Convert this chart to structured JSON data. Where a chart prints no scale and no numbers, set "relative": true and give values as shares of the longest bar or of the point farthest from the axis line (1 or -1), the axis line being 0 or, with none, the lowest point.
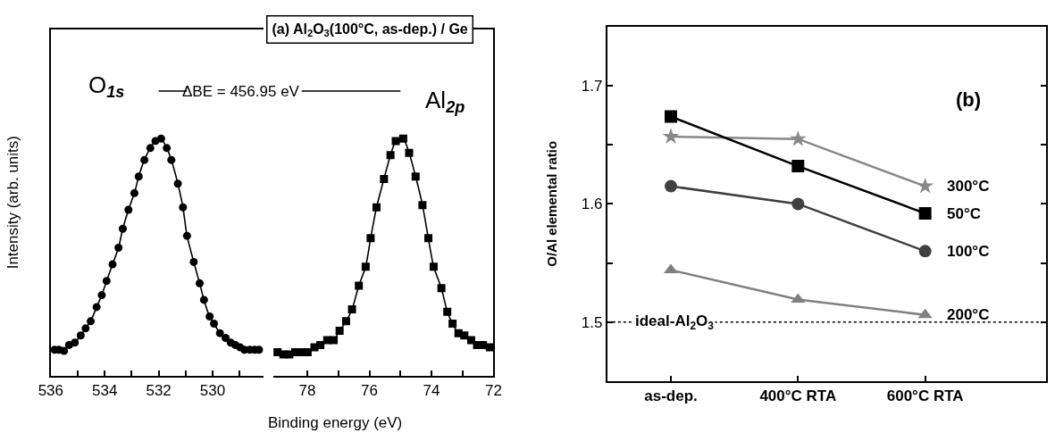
{
  "chart_data": [
    {
      "type": "line",
      "xlabel": "Binding energy (eV)",
      "ylabel": "Intensity (arb. units)",
      "relative": true,
      "xlim": [
        536,
        528.1
      ],
      "xticks": [
        536,
        {
          "value": 535,
          "label": null
        },
        534,
        {
          "value": 533,
          "label": null
        },
        532,
        {
          "value": 531,
          "label": null
        },
        530,
        {
          "value": 529,
          "label": null
        }
      ],
      "tick_labels": "x",
      "grid": false,
      "marker": "circle",
      "line_style": "solid",
      "annotations": [
        "O$_{1s}$"
      ],
      "series": [
        {
          "color": "#000000",
          "x": [
            535.86,
            535.7,
            535.51,
            535.32,
            535.11,
            534.89,
            534.71,
            534.52,
            534.3,
            534.11,
            533.93,
            533.71,
            533.49,
            533.33,
            533.12,
            532.9,
            532.74,
            532.53,
            532.31,
            532.12,
            531.91,
            531.7,
            531.53,
            531.29,
            531.1,
            530.95,
            530.7,
            530.48,
            530.32,
            530.11,
            529.95,
            529.73,
            529.52,
            529.33,
            529.16,
            528.98,
            528.82,
            528.62,
            528.44,
            528.28
          ],
          "values": [
            0.11,
            0.11,
            0.105,
            0.13,
            0.14,
            0.17,
            0.2,
            0.23,
            0.29,
            0.34,
            0.4,
            0.47,
            0.54,
            0.62,
            0.7,
            0.77,
            0.84,
            0.91,
            0.96,
            0.99,
            1.0,
            0.96,
            0.91,
            0.81,
            0.71,
            0.59,
            0.48,
            0.39,
            0.32,
            0.25,
            0.22,
            0.18,
            0.16,
            0.14,
            0.13,
            0.12,
            0.11,
            0.11,
            0.11,
            0.11
          ]
        }
      ]
    },
    {
      "type": "line",
      "title": "(a) Al$_{2}$O$_{3}$(100°C, as-dep.) / Ge",
      "relative": true,
      "xlim": [
        79.1,
        72
      ],
      "xticks": [
        78,
        {
          "value": 77,
          "label": null
        },
        76,
        {
          "value": 75,
          "label": null
        },
        74,
        {
          "value": 73,
          "label": null
        },
        72
      ],
      "tick_labels": "x",
      "grid": false,
      "marker": "square",
      "line_style": "solid",
      "annotations": [
        "Al$_{2p}$",
        "ΔBE = 456.95 eV"
      ],
      "series": [
        {
          "color": "#000000",
          "x": [
            78.96,
            78.77,
            78.58,
            78.39,
            78.2,
            77.99,
            77.77,
            77.58,
            77.36,
            77.15,
            76.96,
            76.75,
            76.56,
            76.34,
            76.12,
            75.96,
            75.77,
            75.53,
            75.32,
            75.15,
            74.91,
            74.72,
            74.51,
            74.29,
            74.1,
            73.93,
            73.68,
            73.49,
            73.32,
            73.13,
            72.94,
            72.72,
            72.53,
            72.34,
            72.12
          ],
          "values": [
            0.1,
            0.09,
            0.09,
            0.1,
            0.1,
            0.1,
            0.12,
            0.13,
            0.15,
            0.15,
            0.19,
            0.23,
            0.28,
            0.38,
            0.46,
            0.58,
            0.71,
            0.83,
            0.93,
            0.99,
            1.0,
            0.94,
            0.84,
            0.72,
            0.58,
            0.46,
            0.37,
            0.27,
            0.22,
            0.18,
            0.17,
            0.15,
            0.13,
            0.13,
            0.12
          ]
        }
      ]
    },
    {
      "type": "line",
      "ylabel": "O/Al elemental ratio",
      "categories": [
        "as-dep.",
        "400°C RTA",
        "600°C RTA"
      ],
      "ylim": [
        1.45,
        1.75
      ],
      "yticks": [
        {
          "value": 1.45,
          "label": null
        },
        1.5,
        {
          "value": 1.55,
          "label": null
        },
        1.6,
        {
          "value": 1.65,
          "label": null
        },
        1.7
      ],
      "grid": false,
      "line_style": "solid",
      "annotations": [
        "(b)"
      ],
      "ref_lines": [
        {
          "axis": "y",
          "value": 1.5,
          "label": "ideal-Al$_{2}$O$_{3}$",
          "color": "#000000",
          "line_style": "dotted"
        }
      ],
      "series": [
        {
          "name": "300°C",
          "color": "#888888",
          "marker": "star",
          "values": [
            1.657,
            1.655,
            1.615
          ]
        },
        {
          "name": "50°C",
          "color": "#000000",
          "marker": "square",
          "values": [
            1.674,
            1.632,
            1.592
          ]
        },
        {
          "name": "100°C",
          "color": "#404040",
          "marker": "circle",
          "values": [
            1.615,
            1.6,
            1.56
          ]
        },
        {
          "name": "200°C",
          "color": "#808080",
          "marker": "triangle",
          "values": [
            1.544,
            1.519,
            1.506
          ]
        }
      ]
    }
  ]
}
